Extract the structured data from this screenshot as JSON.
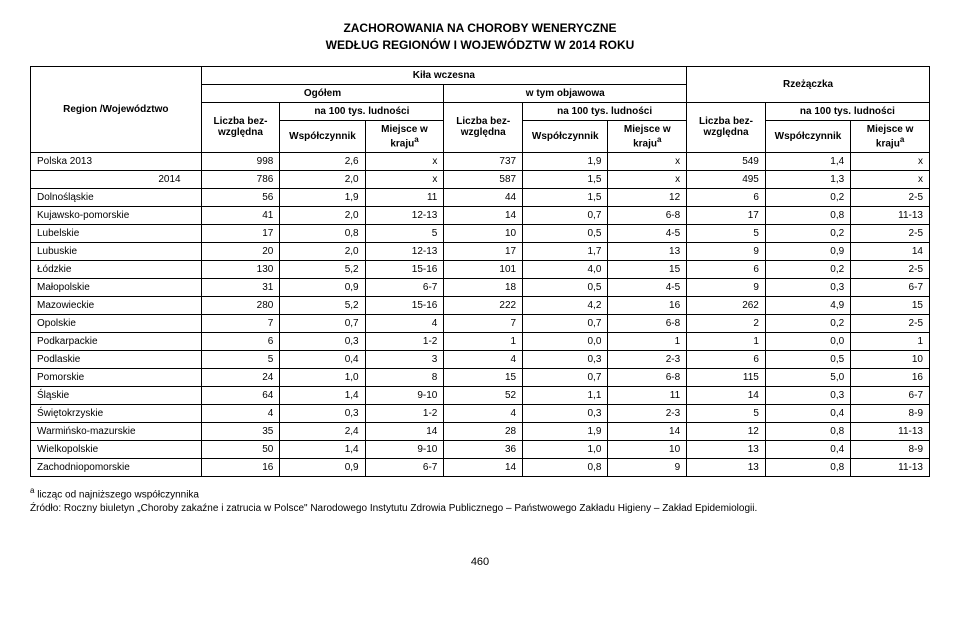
{
  "title_line1": "ZACHOROWANIA NA CHOROBY WENERYCZNE",
  "title_line2": "WEDŁUG REGIONÓW I WOJEWÓDZTW W 2014 ROKU",
  "header": {
    "region": "Region /Województwo",
    "kila": "Kiła wczesna",
    "ogolem": "Ogółem",
    "wtym": "w tym objawowa",
    "rzezaczka": "Rzeżączka",
    "liczba": "Liczba bez-względna",
    "na100": "na 100 tys. ludności",
    "wspol": "Współczynnik",
    "miejsce": "Miejsce w kraju"
  },
  "rows": [
    {
      "label": "Polska       2013",
      "c": [
        "998",
        "2,6",
        "x",
        "737",
        "1,9",
        "x",
        "549",
        "1,4",
        "x"
      ]
    },
    {
      "label": "2014",
      "indent": true,
      "c": [
        "786",
        "2,0",
        "x",
        "587",
        "1,5",
        "x",
        "495",
        "1,3",
        "x"
      ]
    },
    {
      "label": "Dolnośląskie",
      "c": [
        "56",
        "1,9",
        "11",
        "44",
        "1,5",
        "12",
        "6",
        "0,2",
        "2-5"
      ]
    },
    {
      "label": "Kujawsko-pomorskie",
      "c": [
        "41",
        "2,0",
        "12-13",
        "14",
        "0,7",
        "6-8",
        "17",
        "0,8",
        "11-13"
      ]
    },
    {
      "label": "Lubelskie",
      "c": [
        "17",
        "0,8",
        "5",
        "10",
        "0,5",
        "4-5",
        "5",
        "0,2",
        "2-5"
      ]
    },
    {
      "label": "Lubuskie",
      "c": [
        "20",
        "2,0",
        "12-13",
        "17",
        "1,7",
        "13",
        "9",
        "0,9",
        "14"
      ]
    },
    {
      "label": "Łódzkie",
      "c": [
        "130",
        "5,2",
        "15-16",
        "101",
        "4,0",
        "15",
        "6",
        "0,2",
        "2-5"
      ]
    },
    {
      "label": "Małopolskie",
      "c": [
        "31",
        "0,9",
        "6-7",
        "18",
        "0,5",
        "4-5",
        "9",
        "0,3",
        "6-7"
      ]
    },
    {
      "label": "Mazowieckie",
      "c": [
        "280",
        "5,2",
        "15-16",
        "222",
        "4,2",
        "16",
        "262",
        "4,9",
        "15"
      ]
    },
    {
      "label": "Opolskie",
      "c": [
        "7",
        "0,7",
        "4",
        "7",
        "0,7",
        "6-8",
        "2",
        "0,2",
        "2-5"
      ]
    },
    {
      "label": "Podkarpackie",
      "c": [
        "6",
        "0,3",
        "1-2",
        "1",
        "0,0",
        "1",
        "1",
        "0,0",
        "1"
      ]
    },
    {
      "label": "Podlaskie",
      "c": [
        "5",
        "0,4",
        "3",
        "4",
        "0,3",
        "2-3",
        "6",
        "0,5",
        "10"
      ]
    },
    {
      "label": "Pomorskie",
      "c": [
        "24",
        "1,0",
        "8",
        "15",
        "0,7",
        "6-8",
        "115",
        "5,0",
        "16"
      ]
    },
    {
      "label": "Śląskie",
      "c": [
        "64",
        "1,4",
        "9-10",
        "52",
        "1,1",
        "11",
        "14",
        "0,3",
        "6-7"
      ]
    },
    {
      "label": "Świętokrzyskie",
      "c": [
        "4",
        "0,3",
        "1-2",
        "4",
        "0,3",
        "2-3",
        "5",
        "0,4",
        "8-9"
      ]
    },
    {
      "label": "Warmińsko-mazurskie",
      "c": [
        "35",
        "2,4",
        "14",
        "28",
        "1,9",
        "14",
        "12",
        "0,8",
        "11-13"
      ]
    },
    {
      "label": "Wielkopolskie",
      "c": [
        "50",
        "1,4",
        "9-10",
        "36",
        "1,0",
        "10",
        "13",
        "0,4",
        "8-9"
      ]
    },
    {
      "label": "Zachodniopomorskie",
      "c": [
        "16",
        "0,9",
        "6-7",
        "14",
        "0,8",
        "9",
        "13",
        "0,8",
        "11-13"
      ]
    }
  ],
  "footnote_a": "licząc od najniższego współczynnika",
  "footnote_src": "Źródło: Roczny biuletyn „Choroby zakaźne i zatrucia w Polsce\" Narodowego Instytutu Zdrowia Publicznego – Państwowego Zakładu Higieny – Zakład Epidemiologii.",
  "pagenum": "460",
  "colwidths": [
    "130",
    "60",
    "65",
    "60",
    "60",
    "65",
    "60",
    "60",
    "65",
    "60"
  ]
}
